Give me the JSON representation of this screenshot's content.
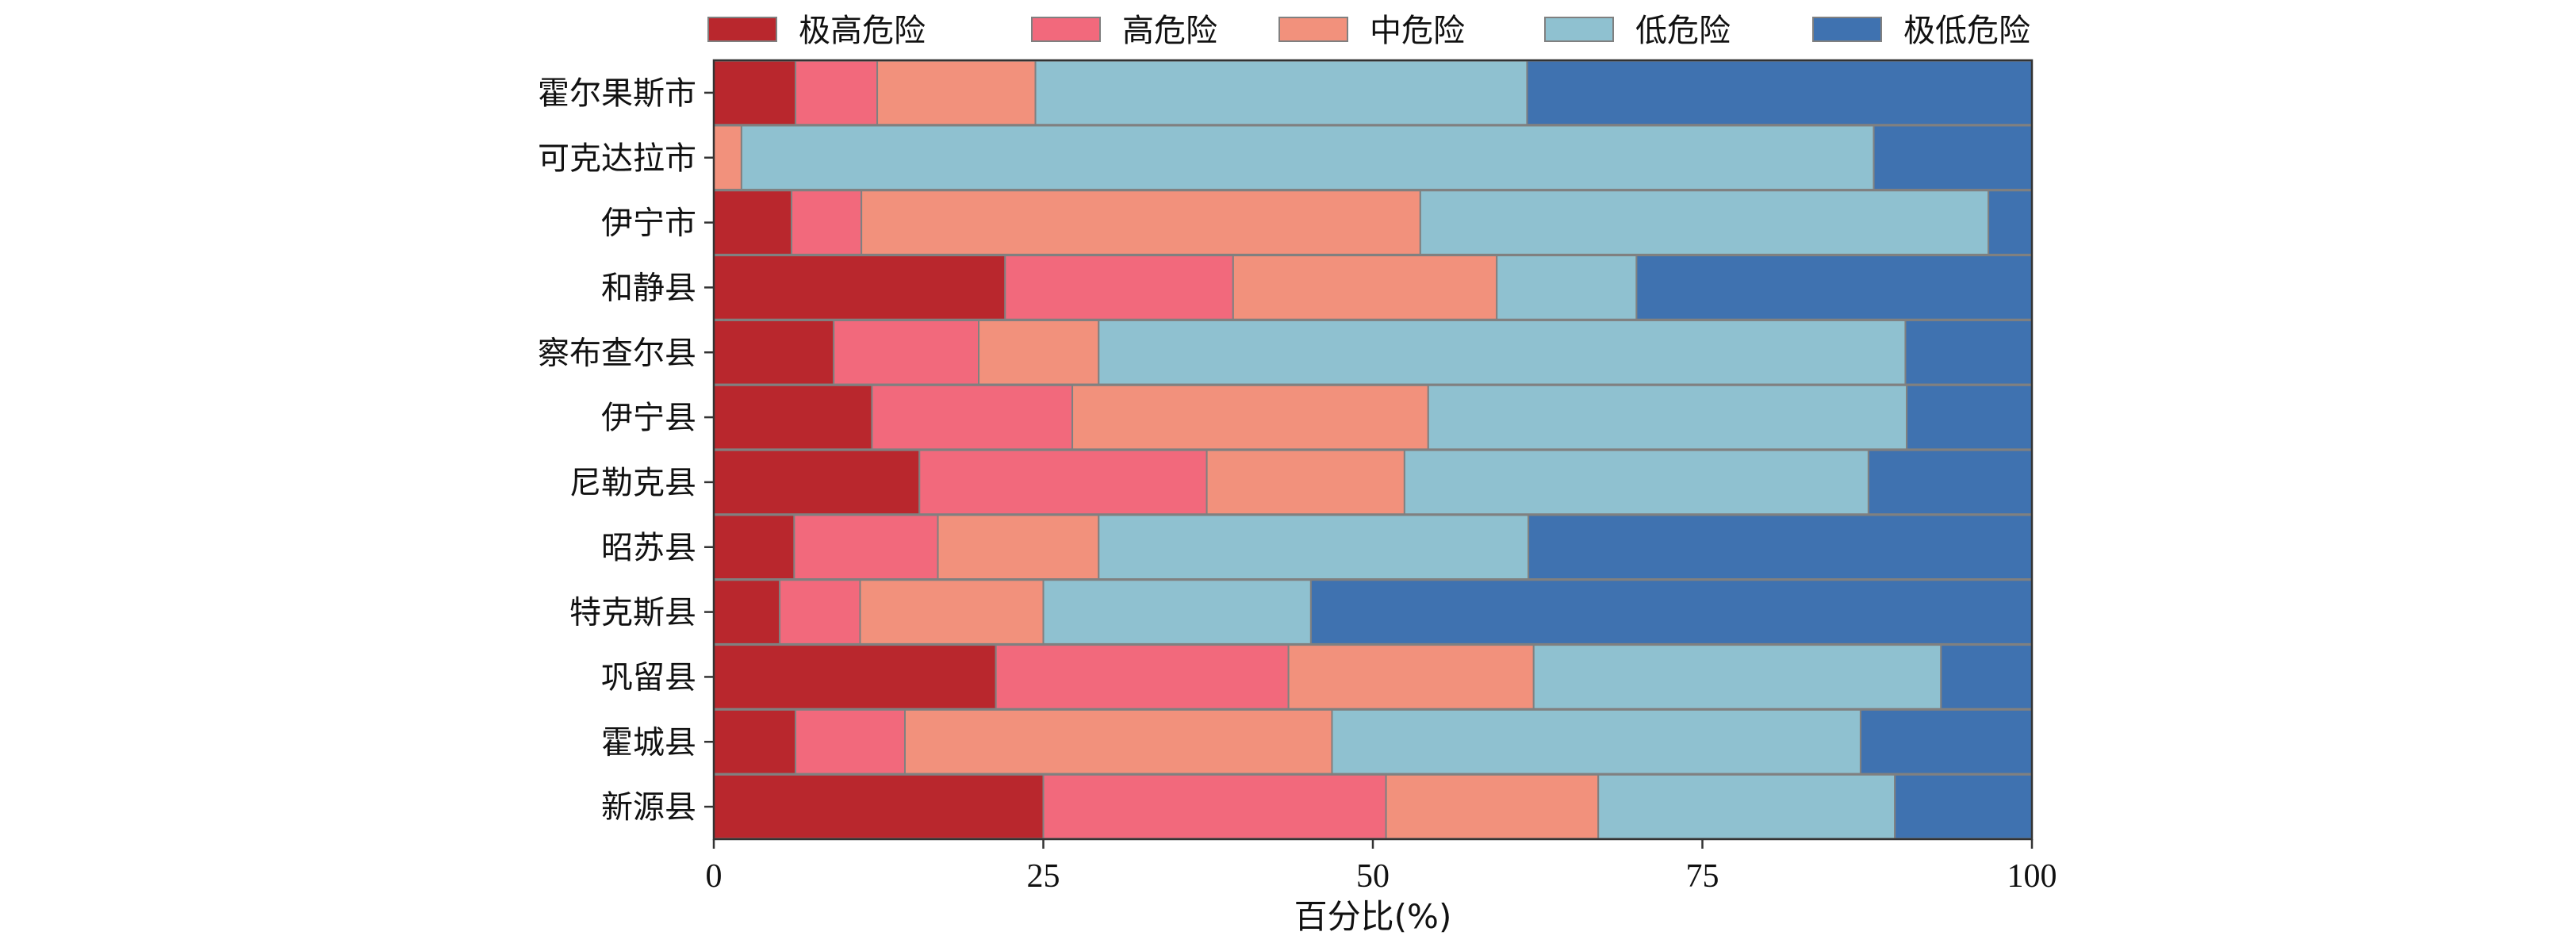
{
  "chart_data": {
    "type": "bar",
    "orientation": "horizontal",
    "stacked": true,
    "title": "",
    "xlabel": "百分比(%)",
    "ylabel": "",
    "xlim": [
      0,
      100
    ],
    "xticks": [
      0,
      25,
      50,
      75,
      100
    ],
    "grid": false,
    "legend_position": "top",
    "categories": [
      "霍尔果斯市",
      "可克达拉市",
      "伊宁市",
      "和静县",
      "察布查尔县",
      "伊宁县",
      "尼勒克县",
      "昭苏县",
      "特克斯县",
      "巩留县",
      "霍城县",
      "新源县"
    ],
    "series": [
      {
        "name": "极高危险",
        "color": "#b9272d",
        "values": [
          6.2,
          0,
          5.9,
          22.1,
          9.1,
          12.0,
          15.6,
          6.1,
          5.0,
          21.4,
          6.2,
          25.0
        ]
      },
      {
        "name": "高危险",
        "color": "#f2697c",
        "values": [
          6.2,
          0,
          5.3,
          17.3,
          11.0,
          15.2,
          21.8,
          10.9,
          6.1,
          22.2,
          8.3,
          26.0
        ]
      },
      {
        "name": "中危险",
        "color": "#f2917c",
        "values": [
          12.0,
          2.1,
          42.4,
          20.0,
          9.1,
          27.0,
          15.0,
          12.2,
          13.9,
          18.6,
          32.4,
          16.1
        ]
      },
      {
        "name": "低危险",
        "color": "#8fc1d0",
        "values": [
          37.3,
          85.9,
          43.1,
          10.6,
          61.2,
          36.3,
          35.2,
          32.6,
          20.3,
          30.9,
          40.1,
          22.5
        ]
      },
      {
        "name": "极低危险",
        "color": "#3f72b0",
        "values": [
          38.3,
          12.0,
          3.3,
          30.0,
          9.6,
          9.5,
          12.4,
          38.2,
          54.7,
          6.9,
          13.0,
          10.4
        ]
      }
    ]
  }
}
